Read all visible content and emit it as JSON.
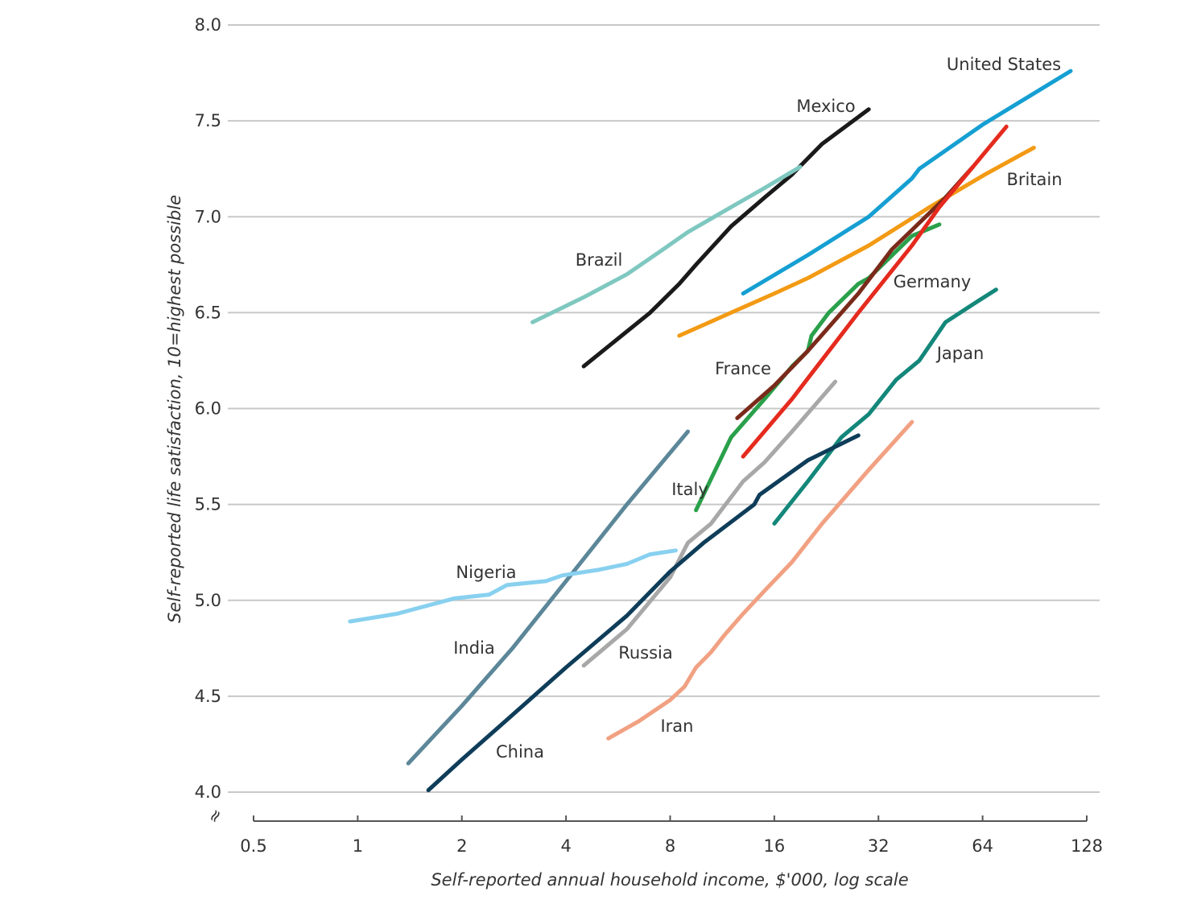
{
  "chart_data": {
    "type": "line",
    "title": "",
    "xlabel": "Self-reported annual household income, $'000, log scale",
    "ylabel": "Self-reported life satisfaction, 10=highest possible",
    "x_scale": "log2",
    "xlim": [
      0.5,
      128
    ],
    "ylim": [
      4.0,
      8.0
    ],
    "x_ticks": [
      0.5,
      1,
      2,
      4,
      8,
      16,
      32,
      64,
      128
    ],
    "x_tick_labels": [
      "0.5",
      "1",
      "2",
      "4",
      "8",
      "16",
      "32",
      "64",
      "128"
    ],
    "y_ticks": [
      4.0,
      4.5,
      5.0,
      5.5,
      6.0,
      6.5,
      7.0,
      7.5,
      8.0
    ],
    "y_tick_labels": [
      "4.0",
      "4.5",
      "5.0",
      "5.5",
      "6.0",
      "6.5",
      "7.0",
      "7.5",
      "8.0"
    ],
    "y_axis_break_symbol": "≈",
    "grid": "horizontal",
    "series": [
      {
        "name": "United States",
        "color": "#159fd2",
        "points": [
          [
            13.0,
            6.6
          ],
          [
            20.0,
            6.8
          ],
          [
            30.0,
            7.0
          ],
          [
            40.0,
            7.2
          ],
          [
            42.0,
            7.25
          ],
          [
            64.0,
            7.48
          ],
          [
            115.0,
            7.76
          ]
        ]
      },
      {
        "name": "Mexico",
        "color": "#1a1a1a",
        "points": [
          [
            4.5,
            6.22
          ],
          [
            7.0,
            6.5
          ],
          [
            8.5,
            6.65
          ],
          [
            9.5,
            6.75
          ],
          [
            12.0,
            6.95
          ],
          [
            15.0,
            7.1
          ],
          [
            18.0,
            7.22
          ],
          [
            22.0,
            7.38
          ],
          [
            30.0,
            7.56
          ]
        ]
      },
      {
        "name": "Brazil",
        "color": "#7ec8c0",
        "points": [
          [
            3.2,
            6.45
          ],
          [
            4.5,
            6.58
          ],
          [
            6.0,
            6.7
          ],
          [
            7.5,
            6.82
          ],
          [
            9.0,
            6.92
          ],
          [
            12.0,
            7.05
          ],
          [
            15.0,
            7.15
          ],
          [
            19.0,
            7.26
          ]
        ]
      },
      {
        "name": "Britain",
        "color": "#f39a14",
        "points": [
          [
            8.5,
            6.38
          ],
          [
            12.0,
            6.5
          ],
          [
            16.0,
            6.6
          ],
          [
            20.0,
            6.68
          ],
          [
            30.0,
            6.85
          ],
          [
            45.0,
            7.05
          ],
          [
            65.0,
            7.22
          ],
          [
            90.0,
            7.36
          ]
        ]
      },
      {
        "name": "Germany",
        "color": "#2aa04a",
        "points": [
          [
            9.5,
            5.47
          ],
          [
            12.0,
            5.85
          ],
          [
            15.0,
            6.05
          ],
          [
            18.0,
            6.22
          ],
          [
            20.0,
            6.3
          ],
          [
            20.5,
            6.38
          ],
          [
            23.0,
            6.5
          ],
          [
            28.0,
            6.65
          ],
          [
            30.0,
            6.68
          ],
          [
            40.0,
            6.9
          ],
          [
            48.0,
            6.96
          ]
        ]
      },
      {
        "name": "France",
        "color": "#7a2a1a",
        "points": [
          [
            12.5,
            5.95
          ],
          [
            16.0,
            6.12
          ],
          [
            20.0,
            6.3
          ],
          [
            28.0,
            6.6
          ],
          [
            35.0,
            6.83
          ],
          [
            50.0,
            7.1
          ],
          [
            60.0,
            7.26
          ]
        ]
      },
      {
        "name": "Italy",
        "color": "#e52a1e",
        "points": [
          [
            13.0,
            5.75
          ],
          [
            18.0,
            6.05
          ],
          [
            28.0,
            6.5
          ],
          [
            40.0,
            6.85
          ],
          [
            48.0,
            7.05
          ],
          [
            60.0,
            7.26
          ],
          [
            75.0,
            7.47
          ]
        ]
      },
      {
        "name": "Japan",
        "color": "#13877a",
        "points": [
          [
            16.0,
            5.4
          ],
          [
            20.0,
            5.62
          ],
          [
            25.0,
            5.85
          ],
          [
            30.0,
            5.97
          ],
          [
            36.0,
            6.15
          ],
          [
            42.0,
            6.25
          ],
          [
            50.0,
            6.45
          ],
          [
            62.0,
            6.56
          ],
          [
            70.0,
            6.62
          ]
        ]
      },
      {
        "name": "Russia",
        "color": "#a8a8a8",
        "points": [
          [
            4.5,
            4.66
          ],
          [
            6.0,
            4.85
          ],
          [
            8.0,
            5.12
          ],
          [
            9.0,
            5.3
          ],
          [
            10.5,
            5.4
          ],
          [
            13.0,
            5.62
          ],
          [
            15.0,
            5.72
          ],
          [
            18.0,
            5.88
          ],
          [
            24.0,
            6.14
          ]
        ]
      },
      {
        "name": "China",
        "color": "#0e3d59",
        "points": [
          [
            1.6,
            4.01
          ],
          [
            2.0,
            4.17
          ],
          [
            3.0,
            4.45
          ],
          [
            4.0,
            4.65
          ],
          [
            6.0,
            4.92
          ],
          [
            8.0,
            5.15
          ],
          [
            10.0,
            5.3
          ],
          [
            14.0,
            5.5
          ],
          [
            14.5,
            5.55
          ],
          [
            20.0,
            5.73
          ],
          [
            28.0,
            5.86
          ]
        ]
      },
      {
        "name": "India",
        "color": "#5c8799",
        "points": [
          [
            1.4,
            4.15
          ],
          [
            2.0,
            4.45
          ],
          [
            2.8,
            4.75
          ],
          [
            4.0,
            5.1
          ],
          [
            6.0,
            5.5
          ],
          [
            9.0,
            5.88
          ]
        ]
      },
      {
        "name": "Nigeria",
        "color": "#88d0ef",
        "points": [
          [
            0.95,
            4.89
          ],
          [
            1.3,
            4.93
          ],
          [
            1.9,
            5.01
          ],
          [
            2.4,
            5.03
          ],
          [
            2.7,
            5.08
          ],
          [
            3.5,
            5.1
          ],
          [
            3.9,
            5.13
          ],
          [
            5.0,
            5.16
          ],
          [
            6.0,
            5.19
          ],
          [
            7.0,
            5.24
          ],
          [
            8.3,
            5.26
          ]
        ]
      },
      {
        "name": "Iran",
        "color": "#f1a182",
        "points": [
          [
            5.3,
            4.28
          ],
          [
            6.5,
            4.37
          ],
          [
            8.0,
            4.48
          ],
          [
            8.8,
            4.55
          ],
          [
            9.5,
            4.65
          ],
          [
            10.5,
            4.73
          ],
          [
            11.5,
            4.82
          ],
          [
            13.0,
            4.93
          ],
          [
            15.0,
            5.05
          ],
          [
            18.0,
            5.2
          ],
          [
            22.0,
            5.4
          ],
          [
            30.0,
            5.68
          ],
          [
            40.0,
            5.93
          ]
        ]
      }
    ]
  },
  "series_label_text": {
    "United States": "United States",
    "Mexico": "Mexico",
    "Brazil": "Brazil",
    "Britain": "Britain",
    "Germany": "Germany",
    "France": "France",
    "Japan": "Japan",
    "Italy": "Italy",
    "Nigeria": "Nigeria",
    "India": "India",
    "Russia": "Russia",
    "Iran": "Iran",
    "China": "China"
  }
}
